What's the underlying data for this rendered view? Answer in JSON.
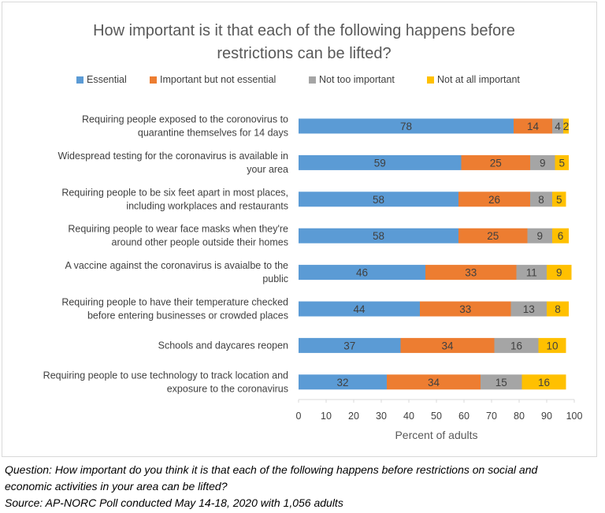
{
  "chart_data": {
    "type": "bar",
    "orientation": "horizontal",
    "stacked": true,
    "title": "How important is it that each of the following happens before restrictions can be lifted?",
    "title_lines": [
      "How important is it that each of the following happens before",
      "restrictions can be lifted?"
    ],
    "xlabel": "Percent of adults",
    "xlim": [
      0,
      100
    ],
    "xticks": [
      0,
      10,
      20,
      30,
      40,
      50,
      60,
      70,
      80,
      90,
      100
    ],
    "legend_position": "top",
    "categories": [
      [
        "Requiring people exposed to the coronovirus to",
        "quarantine themselves for 14 days"
      ],
      [
        "Widespread testing for the coronavirus is available in",
        "your area"
      ],
      [
        "Requiring people to be six feet apart in most places,",
        "including workplaces and restaurants"
      ],
      [
        "Requiring people to wear face masks when they're",
        "around other people outside their homes"
      ],
      [
        "A vaccine against the coronavirus is avaialbe to the",
        "public"
      ],
      [
        "Requiring people to have their temperature checked",
        "before entering businesses or crowded places"
      ],
      [
        "Schools and daycares reopen"
      ],
      [
        "Requiring people to use technology to track location and",
        "exposure to the coronavirus"
      ]
    ],
    "series": [
      {
        "name": "Essential",
        "color": "#5b9bd5",
        "values": [
          78,
          59,
          58,
          58,
          46,
          44,
          37,
          32
        ]
      },
      {
        "name": "Important but not essential",
        "color": "#ed7d31",
        "values": [
          14,
          25,
          26,
          25,
          33,
          33,
          34,
          34
        ]
      },
      {
        "name": "Not too important",
        "color": "#a5a5a5",
        "values": [
          4,
          9,
          8,
          9,
          11,
          13,
          16,
          15
        ]
      },
      {
        "name": "Not at all important",
        "color": "#ffc000",
        "values": [
          2,
          5,
          5,
          6,
          9,
          8,
          10,
          16
        ]
      }
    ],
    "label_color": "#404040",
    "grid": false
  },
  "notes": {
    "question_line1": "Question: How important do you think it is that each of the following happens before restrictions on social and",
    "question_line2": "economic activities in your area can be lifted?",
    "source": "Source: AP-NORC Poll conducted May 14-18, 2020 with 1,056 adults"
  }
}
